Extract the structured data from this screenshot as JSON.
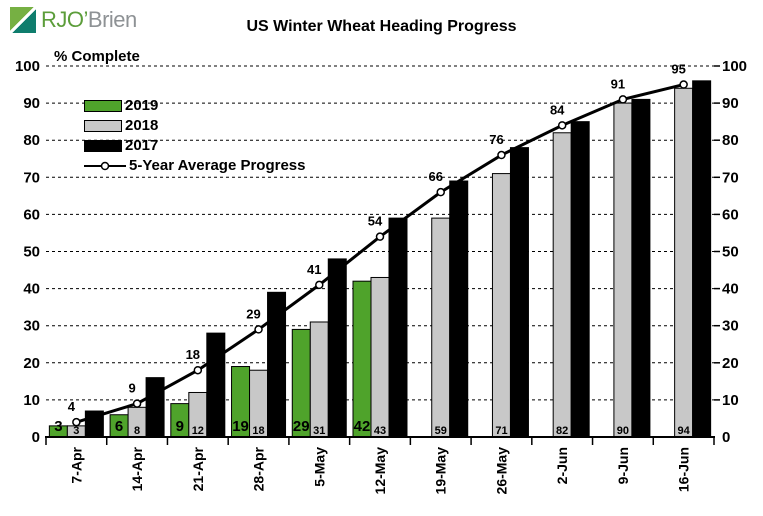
{
  "logo": {
    "name_green": "RJO’",
    "name_gray": "Brien"
  },
  "title": "US Winter Wheat Heading Progress",
  "chart_data": {
    "type": "bar",
    "title": "US Winter Wheat Heading Progress",
    "ylabel": "% Complete",
    "ylim": [
      0,
      100
    ],
    "yticks": [
      0,
      10,
      20,
      30,
      40,
      50,
      60,
      70,
      80,
      90,
      100
    ],
    "grid": "dashed horizontal, dual y-axis labels left and right",
    "legend_position": "top-left inside plot",
    "categories": [
      "7-Apr",
      "14-Apr",
      "21-Apr",
      "28-Apr",
      "5-May",
      "12-May",
      "19-May",
      "26-May",
      "2-Jun",
      "9-Jun",
      "16-Jun"
    ],
    "series": [
      {
        "name": "2019",
        "type": "bar",
        "color": "#4fa32b",
        "values": [
          3,
          6,
          9,
          19,
          29,
          42,
          null,
          null,
          null,
          null,
          null
        ],
        "labels_shown": true
      },
      {
        "name": "2018",
        "type": "bar",
        "color": "#c8c8c8",
        "values": [
          3,
          8,
          12,
          18,
          31,
          43,
          59,
          71,
          82,
          90,
          94
        ],
        "labels_shown": true
      },
      {
        "name": "2017",
        "type": "bar",
        "color": "#000000",
        "values": [
          7,
          16,
          28,
          39,
          48,
          59,
          69,
          78,
          85,
          91,
          96
        ],
        "labels_shown": false,
        "estimated": true
      },
      {
        "name": "5-Year Average Progress",
        "type": "line",
        "color": "#000000",
        "marker": "open-circle",
        "values": [
          4,
          9,
          18,
          29,
          41,
          54,
          66,
          76,
          84,
          91,
          95
        ],
        "labels_shown": true
      }
    ]
  }
}
